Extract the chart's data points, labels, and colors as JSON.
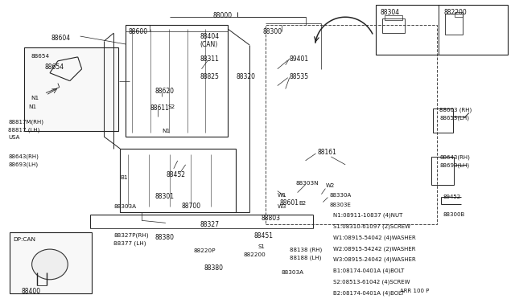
{
  "bg": "#ffffff",
  "legend_lines": [
    "N1:08911-10837 (4)NUT",
    "S1:08310-61097 (2)SCREW",
    "W1:08915-54042 (4)WASHER",
    "W2:08915-54242 (2)WASHER",
    "W3:08915-24042 (4)WASHER",
    "B1:08174-0401A (4)BOLT",
    "S2:08513-61042 (4)SCREW",
    "B2:08174-0401A (4)BOLT"
  ],
  "arr_text": "ARR 100 P"
}
